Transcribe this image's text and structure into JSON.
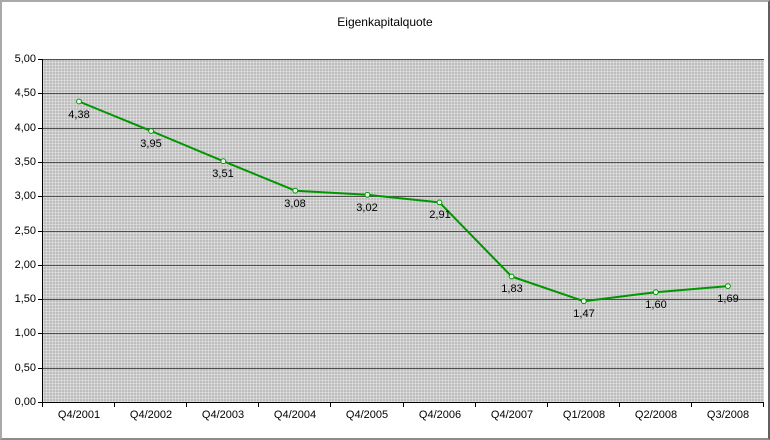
{
  "chart_data": {
    "type": "line",
    "title": "Eigenkapitalquote",
    "categories": [
      "Q4/2001",
      "Q4/2002",
      "Q4/2003",
      "Q4/2004",
      "Q4/2005",
      "Q4/2006",
      "Q4/2007",
      "Q1/2008",
      "Q2/2008",
      "Q3/2008"
    ],
    "values": [
      4.38,
      3.95,
      3.51,
      3.08,
      3.02,
      2.91,
      1.83,
      1.47,
      1.6,
      1.69
    ],
    "point_labels": [
      "4,38",
      "3,95",
      "3,51",
      "3,08",
      "3,02",
      "2,91",
      "1,83",
      "1,47",
      "1,60",
      "1,69"
    ],
    "ylim": [
      0,
      5
    ],
    "yticks": [
      0,
      0.5,
      1,
      1.5,
      2,
      2.5,
      3,
      3.5,
      4,
      4.5,
      5
    ],
    "ytick_labels": [
      "0,00",
      "0,50",
      "1,00",
      "1,50",
      "2,00",
      "2,50",
      "3,00",
      "3,50",
      "4,00",
      "4,50",
      "5,00"
    ],
    "grid": true,
    "legend": "none",
    "colors": {
      "line": "#009600",
      "marker_fill": "#f0fff0",
      "plot_background": "#bdbdbd",
      "gridline": "#4f4f4f",
      "axis": "#000000",
      "text": "#000000"
    }
  }
}
